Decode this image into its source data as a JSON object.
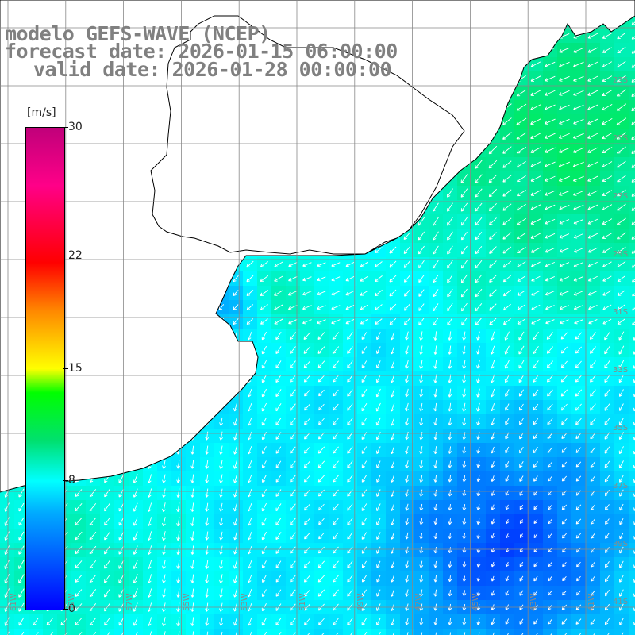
{
  "title": {
    "line1": "modelo GEFS-WAVE (NCEP)",
    "line2": "forecast date: 2026-01-15 06:00:00",
    "line3": "valid date: 2026-01-28 00:00:00"
  },
  "colorbar": {
    "units": "[m/s]",
    "ticks": [
      "30",
      "22",
      "15",
      "8",
      "0"
    ],
    "tick_values": [
      30,
      22,
      15,
      8,
      0
    ],
    "colors": [
      "#0000ff",
      "#00aaff",
      "#00ffff",
      "#00e070",
      "#00ff00",
      "#ffff00",
      "#ff8800",
      "#ff0000",
      "#ff0088",
      "#c0007a"
    ]
  },
  "map": {
    "variable": "wind speed and direction",
    "land_color": "#ffffff",
    "coastline_color": "#000000",
    "grid_color": "#888888",
    "lon_labels": [
      "61W",
      "59W",
      "57W",
      "55W",
      "53W",
      "51W",
      "49W",
      "47W",
      "45W",
      "43W",
      "41W"
    ],
    "lat_labels": [
      "23S",
      "25S",
      "27S",
      "29S",
      "31S",
      "33S",
      "35S",
      "37S",
      "39S",
      "41S"
    ]
  }
}
